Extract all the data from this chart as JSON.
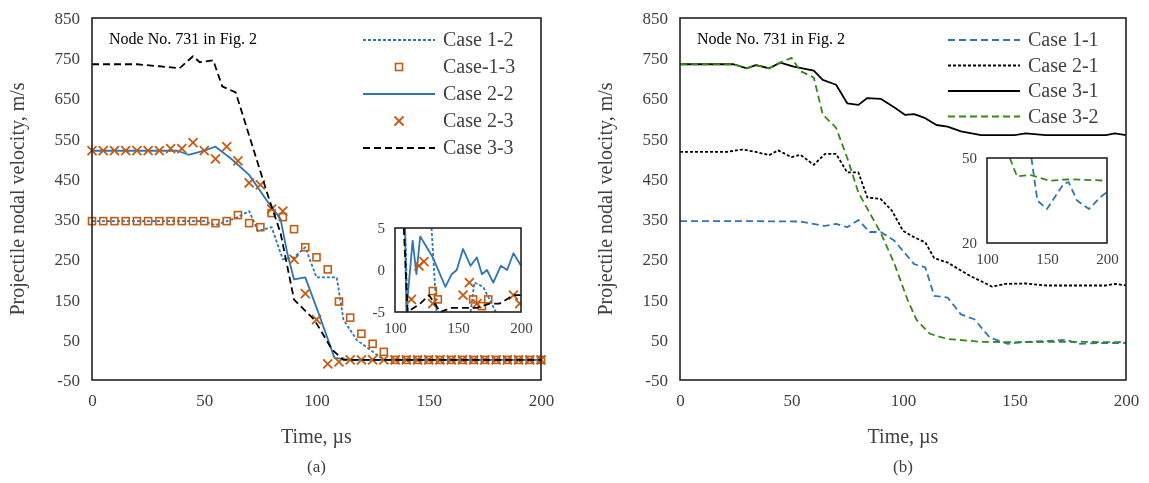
{
  "chart_data": [
    {
      "type": "line",
      "xlabel": "Time,  µs",
      "ylabel": "Projectile  nodal velocity, m/s",
      "xlim": [
        0,
        200
      ],
      "xticks": [
        0,
        50,
        100,
        150,
        200
      ],
      "ylim": [
        -50,
        850
      ],
      "yticks": [
        -50,
        50,
        150,
        250,
        350,
        450,
        550,
        650,
        750,
        850
      ],
      "legend": "top right",
      "annotations": [
        "Node No. 731 in Fig. 2",
        "(a)"
      ],
      "series": [
        {
          "name": "Case 1-2",
          "color": "#2e75b6",
          "line_style": "dotted",
          "x": [
            0,
            10,
            20,
            30,
            40,
            50,
            55,
            60,
            65,
            70,
            74,
            80,
            85,
            90,
            95,
            100,
            105,
            109,
            112,
            118,
            124,
            130,
            140,
            150,
            160,
            170,
            180,
            190,
            200
          ],
          "values": [
            345,
            345,
            345,
            345,
            345,
            345,
            335,
            345,
            355,
            370,
            320,
            330,
            250,
            255,
            280,
            205,
            205,
            205,
            100,
            49,
            25,
            0,
            0,
            0,
            0,
            0,
            0,
            0,
            0
          ]
        },
        {
          "name": "Case-1-3",
          "type": "scatter",
          "marker": "square",
          "color": "#c55a11",
          "x": [
            0,
            5,
            10,
            15,
            20,
            25,
            30,
            35,
            40,
            45,
            50,
            55,
            60,
            65,
            70,
            75,
            80,
            85,
            90,
            95,
            100,
            105,
            110,
            115,
            120,
            125,
            130,
            135,
            140,
            145,
            150,
            155,
            160,
            165,
            170,
            175,
            180,
            185,
            190,
            195,
            200
          ],
          "values": [
            345,
            345,
            345,
            345,
            345,
            345,
            345,
            345,
            345,
            345,
            345,
            340,
            345,
            360,
            340,
            330,
            365,
            355,
            325,
            280,
            255,
            225,
            145,
            105,
            65,
            40,
            20,
            0,
            0,
            0,
            0,
            0,
            0,
            0,
            0,
            0,
            0,
            0,
            0,
            0,
            0
          ]
        },
        {
          "name": "Case 2-2",
          "color": "#2e75b6",
          "line_style": "solid",
          "x": [
            0,
            20,
            38,
            43,
            50,
            55,
            62,
            70,
            78,
            84,
            87,
            90,
            95,
            101,
            108,
            115,
            130,
            150,
            170,
            200
          ],
          "values": [
            520,
            520,
            520,
            510,
            520,
            530,
            500,
            460,
            395,
            350,
            265,
            200,
            205,
            115,
            5,
            0,
            0,
            0,
            0,
            0
          ]
        },
        {
          "name": "Case 2-3",
          "type": "scatter",
          "marker": "cross",
          "color": "#c55a11",
          "x": [
            0,
            5,
            10,
            15,
            20,
            25,
            30,
            35,
            40,
            45,
            50,
            55,
            60,
            65,
            70,
            75,
            80,
            85,
            90,
            95,
            100,
            105,
            110,
            115,
            120,
            125,
            130,
            135,
            140,
            145,
            150,
            155,
            160,
            165,
            170,
            175,
            180,
            185,
            190,
            195,
            200
          ],
          "values": [
            520,
            520,
            520,
            520,
            520,
            520,
            520,
            525,
            525,
            540,
            520,
            500,
            530,
            495,
            440,
            435,
            375,
            370,
            250,
            165,
            100,
            -10,
            -5,
            0,
            0,
            0,
            0,
            0,
            0,
            0,
            0,
            0,
            0,
            0,
            0,
            0,
            0,
            0,
            0,
            0,
            0
          ]
        },
        {
          "name": "Case 3-3",
          "color": "#000000",
          "line_style": "dashed",
          "x": [
            0,
            20,
            30,
            39,
            45,
            48,
            54,
            58,
            64,
            78,
            84,
            90,
            99,
            107,
            112,
            130,
            150,
            170,
            200
          ],
          "values": [
            735,
            735,
            730,
            725,
            755,
            740,
            745,
            680,
            665,
            415,
            315,
            150,
            100,
            25,
            0,
            0,
            0,
            0,
            0
          ]
        }
      ]
    },
    {
      "type": "line",
      "xlim": [
        100,
        200
      ],
      "xticks": [
        100,
        150,
        200
      ],
      "ylim": [
        -5,
        5
      ],
      "yticks": [
        -5,
        0,
        5
      ],
      "series": [
        {
          "color": "#2e75b6",
          "line_style": "dotted",
          "x": [
            108,
            110,
            120,
            129,
            133,
            150,
            160,
            163,
            170,
            175,
            180
          ],
          "values": [
            5,
            -5,
            null,
            5,
            -5,
            null,
            -5,
            -1.5,
            -2,
            -3.5,
            -5
          ]
        },
        {
          "type": "scatter",
          "marker": "square",
          "color": "#c55a11",
          "x": [
            130,
            134,
            162,
            169,
            174
          ],
          "values": [
            -2.5,
            -3.5,
            -3.5,
            -4.3,
            -3.5
          ]
        },
        {
          "color": "#2e75b6",
          "line_style": "solid",
          "x": [
            108,
            109,
            114,
            117,
            120,
            124,
            130,
            140,
            145,
            149,
            154,
            160,
            165,
            169,
            173,
            178,
            184,
            189,
            194,
            200
          ],
          "values": [
            5,
            -5,
            3.5,
            -0.5,
            4,
            3,
            1.5,
            -2,
            -0.5,
            0,
            2.5,
            0.5,
            1.5,
            -0.5,
            0,
            -1.5,
            0.5,
            0,
            2,
            0.5
          ]
        },
        {
          "type": "scatter",
          "marker": "cross",
          "color": "#c55a11",
          "x": [
            113,
            119,
            123,
            130,
            154,
            159,
            165,
            194,
            199
          ],
          "values": [
            -3.5,
            0.5,
            1,
            -4,
            -3,
            -1.5,
            -4,
            -3,
            -4
          ]
        },
        {
          "color": "#000000",
          "line_style": "dashed",
          "x": [
            107,
            110,
            120,
            127,
            136,
            145,
            154,
            165,
            175,
            183,
            194,
            200
          ],
          "values": [
            5,
            -5,
            -4,
            -3,
            -5,
            -4.5,
            -4.5,
            -4.5,
            -4,
            -4,
            -3,
            -3
          ]
        }
      ]
    },
    {
      "type": "line",
      "xlabel": "Time,  µs",
      "ylabel": "Projectile  nodal velocity, m/s",
      "xlim": [
        0,
        200
      ],
      "xticks": [
        0,
        50,
        100,
        150,
        200
      ],
      "ylim": [
        -50,
        850
      ],
      "yticks": [
        -50,
        50,
        150,
        250,
        350,
        450,
        550,
        650,
        750,
        850
      ],
      "legend": "top right",
      "annotations": [
        "Node No. 731 in Fig. 2",
        "(b)"
      ],
      "series": [
        {
          "name": "Case 1-1",
          "color": "#2e75b6",
          "line_style": "dashed",
          "x": [
            0,
            28,
            54,
            65,
            70,
            75,
            80,
            85,
            90,
            96,
            105,
            110,
            114,
            120,
            126,
            132,
            139,
            147,
            155,
            165,
            173,
            179,
            190,
            200
          ],
          "values": [
            345,
            345,
            344,
            333,
            338,
            330,
            348,
            318,
            318,
            297,
            238,
            230,
            159,
            155,
            113,
            101,
            55,
            40,
            45,
            47,
            50,
            40,
            42,
            42
          ]
        },
        {
          "name": "Case 2-1",
          "color": "#000000",
          "line_style": "dotted",
          "x": [
            0,
            21,
            28,
            34,
            40,
            44,
            50,
            54,
            60,
            65,
            70,
            75,
            80,
            84,
            90,
            95,
            100,
            105,
            110,
            114,
            120,
            130,
            136,
            140,
            146,
            155,
            164,
            191,
            195,
            200
          ],
          "values": [
            517,
            517,
            523,
            517,
            509,
            521,
            504,
            510,
            485,
            512,
            512,
            466,
            466,
            404,
            400,
            371,
            321,
            305,
            292,
            253,
            242,
            209,
            193,
            182,
            189,
            190,
            185,
            185,
            189,
            185
          ]
        },
        {
          "name": "Case 3-1",
          "color": "#000000",
          "line_style": "solid",
          "x": [
            0,
            24,
            30,
            34,
            40,
            45,
            51,
            60,
            64,
            70,
            75,
            80,
            84,
            90,
            96,
            101,
            105,
            110,
            115,
            120,
            126,
            135,
            150,
            155,
            164,
            191,
            195,
            200
          ],
          "values": [
            735,
            735,
            725,
            733,
            725,
            739,
            729,
            719,
            696,
            684,
            638,
            634,
            651,
            649,
            628,
            609,
            611,
            601,
            584,
            580,
            568,
            559,
            559,
            563,
            559,
            559,
            563,
            559
          ]
        },
        {
          "name": "Case 3-2",
          "color": "#38861a",
          "line_style": "dashed",
          "x": [
            0,
            24,
            30,
            34,
            40,
            45,
            50,
            54,
            60,
            64,
            70,
            75,
            80,
            85,
            90,
            96,
            102,
            106,
            112,
            120,
            135,
            150,
            170,
            200
          ],
          "values": [
            735,
            735,
            725,
            733,
            725,
            739,
            751,
            718,
            702,
            610,
            577,
            502,
            416,
            366,
            316,
            241,
            150,
            100,
            65,
            52,
            45,
            44,
            45,
            44
          ]
        }
      ]
    },
    {
      "type": "line",
      "xlim": [
        100,
        200
      ],
      "xticks": [
        100,
        150,
        200
      ],
      "ylim": [
        20,
        50
      ],
      "yticks": [
        20,
        50
      ],
      "series": [
        {
          "color": "#2e75b6",
          "line_style": "dashed",
          "x": [
            137,
            142,
            150,
            164,
            168,
            175,
            185,
            194,
            200
          ],
          "values": [
            50,
            35,
            32,
            41,
            41.5,
            35,
            32,
            36,
            38
          ]
        },
        {
          "color": "#38861a",
          "line_style": "dashed",
          "x": [
            119,
            125,
            136,
            152,
            169,
            200
          ],
          "values": [
            50,
            43.5,
            44,
            42,
            42.5,
            42
          ]
        }
      ]
    }
  ]
}
